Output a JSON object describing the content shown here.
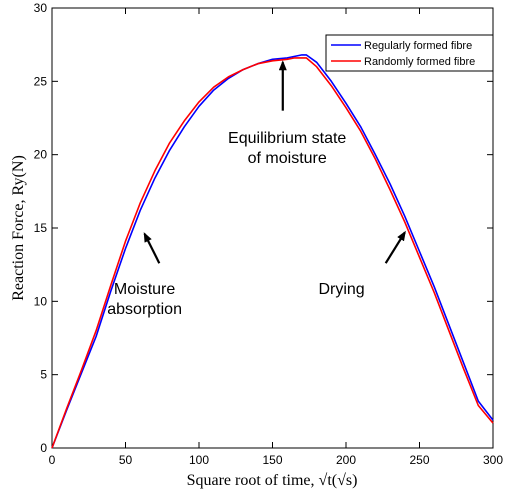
{
  "chart_data": {
    "type": "line",
    "xlabel": "Square root of time, √t(√s)",
    "ylabel": "Reaction Force, Ry(N)",
    "xlim": [
      0,
      300
    ],
    "ylim": [
      0,
      30
    ],
    "xticks": [
      0,
      50,
      100,
      150,
      200,
      250,
      300
    ],
    "yticks": [
      0,
      5,
      10,
      15,
      20,
      25,
      30
    ],
    "grid": false,
    "legend_position": "top-right",
    "series": [
      {
        "name": "Regularly formed fibre",
        "color": "#0000ff",
        "x": [
          0,
          10,
          20,
          30,
          40,
          50,
          60,
          70,
          80,
          90,
          100,
          110,
          120,
          130,
          140,
          150,
          160,
          165,
          170,
          173,
          180,
          190,
          200,
          210,
          220,
          230,
          240,
          250,
          260,
          270,
          280,
          290,
          300
        ],
        "y": [
          0,
          2.6,
          5.1,
          7.6,
          10.7,
          13.6,
          16.2,
          18.4,
          20.3,
          21.9,
          23.3,
          24.4,
          25.2,
          25.8,
          26.2,
          26.5,
          26.6,
          26.7,
          26.8,
          26.8,
          26.3,
          25.0,
          23.5,
          21.9,
          20.0,
          18.0,
          15.8,
          13.4,
          11.0,
          8.4,
          5.8,
          3.2,
          1.9
        ]
      },
      {
        "name": "Randomly formed fibre",
        "color": "#ff0000",
        "x": [
          0,
          10,
          20,
          30,
          40,
          50,
          60,
          70,
          80,
          90,
          100,
          110,
          120,
          130,
          140,
          150,
          160,
          165,
          170,
          173,
          180,
          190,
          200,
          210,
          220,
          230,
          240,
          250,
          260,
          270,
          280,
          290,
          300
        ],
        "y": [
          0,
          2.7,
          5.3,
          8.0,
          11.1,
          14.1,
          16.7,
          18.9,
          20.8,
          22.3,
          23.6,
          24.6,
          25.3,
          25.8,
          26.2,
          26.4,
          26.5,
          26.6,
          26.6,
          26.6,
          26.0,
          24.7,
          23.2,
          21.6,
          19.7,
          17.6,
          15.4,
          13.0,
          10.6,
          8.0,
          5.4,
          2.9,
          1.7
        ]
      }
    ],
    "annotations": [
      {
        "lines": [
          "Equilibrium state",
          "of moisture"
        ],
        "text_pos": [
          160,
          20.8
        ],
        "arrow_from": [
          157,
          23.0
        ],
        "arrow_to": [
          157,
          26.3
        ]
      },
      {
        "lines": [
          "Moisture",
          "absorption"
        ],
        "text_pos": [
          63,
          10.5
        ],
        "arrow_from": [
          73,
          12.6
        ],
        "arrow_to": [
          63,
          14.6
        ]
      },
      {
        "lines": [
          "Drying"
        ],
        "text_pos": [
          197,
          10.5
        ],
        "arrow_from": [
          227,
          12.6
        ],
        "arrow_to": [
          240,
          14.7
        ]
      }
    ]
  }
}
